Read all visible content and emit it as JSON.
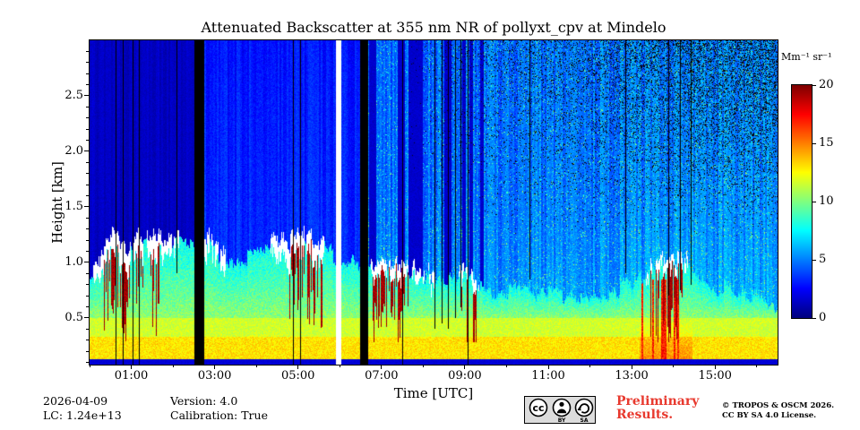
{
  "chart_data": {
    "type": "heatmap",
    "title": "Attenuated Backscatter at 355 nm NR of pollyxt_cpv at Mindelo",
    "xlabel": "Time [UTC]",
    "ylabel": "Height [km]",
    "colorbar_label": "Mm⁻¹ sr⁻¹",
    "colormap": "jet",
    "value_range": [
      0,
      20
    ],
    "time_range_hours": [
      0,
      16.5
    ],
    "height_range_km": [
      0.08,
      3.0
    ],
    "x_major_ticks": [
      {
        "hour": 1,
        "label": "01:00"
      },
      {
        "hour": 3,
        "label": "03:00"
      },
      {
        "hour": 5,
        "label": "05:00"
      },
      {
        "hour": 7,
        "label": "07:00"
      },
      {
        "hour": 9,
        "label": "09:00"
      },
      {
        "hour": 11,
        "label": "11:00"
      },
      {
        "hour": 13,
        "label": "13:00"
      },
      {
        "hour": 15,
        "label": "15:00"
      }
    ],
    "x_minor_tick_hours": [
      0,
      2,
      4,
      6,
      8,
      10,
      12,
      14,
      16
    ],
    "y_major_ticks": [
      {
        "km": 0.5,
        "label": "0.5"
      },
      {
        "km": 1.0,
        "label": "1.0"
      },
      {
        "km": 1.5,
        "label": "1.5"
      },
      {
        "km": 2.0,
        "label": "2.0"
      },
      {
        "km": 2.5,
        "label": "2.5"
      }
    ],
    "y_minor_step_km": 0.1,
    "colorbar_ticks": [
      {
        "value": 0,
        "label": "0"
      },
      {
        "value": 5,
        "label": "5"
      },
      {
        "value": 10,
        "label": "10"
      },
      {
        "value": 15,
        "label": "15"
      },
      {
        "value": 20,
        "label": "20"
      }
    ],
    "aerosol_layer_top_km": [
      [
        0.0,
        0.8
      ],
      [
        0.3,
        1.0
      ],
      [
        0.6,
        1.2
      ],
      [
        0.9,
        1.05
      ],
      [
        1.2,
        1.25
      ],
      [
        1.5,
        1.1
      ],
      [
        1.8,
        1.15
      ],
      [
        2.1,
        1.2
      ],
      [
        2.5,
        1.15
      ],
      [
        3.0,
        1.12
      ],
      [
        3.5,
        1.02
      ],
      [
        4.0,
        1.06
      ],
      [
        4.5,
        1.12
      ],
      [
        5.0,
        1.18
      ],
      [
        5.5,
        1.14
      ],
      [
        6.0,
        1.02
      ],
      [
        6.6,
        0.95
      ],
      [
        7.0,
        0.95
      ],
      [
        7.5,
        0.92
      ],
      [
        8.0,
        0.85
      ],
      [
        8.5,
        0.8
      ],
      [
        9.0,
        0.9
      ],
      [
        9.5,
        0.74
      ],
      [
        10.0,
        0.7
      ],
      [
        10.5,
        0.73
      ],
      [
        11.0,
        0.7
      ],
      [
        11.5,
        0.69
      ],
      [
        12.0,
        0.71
      ],
      [
        12.5,
        0.74
      ],
      [
        13.0,
        0.78
      ],
      [
        13.5,
        0.92
      ],
      [
        14.0,
        1.0
      ],
      [
        14.5,
        0.86
      ],
      [
        15.0,
        0.77
      ],
      [
        15.5,
        0.72
      ],
      [
        16.0,
        0.69
      ],
      [
        16.5,
        0.66
      ]
    ],
    "upper_background": {
      "pre_gap_value": 1.3,
      "pre_noise": 0.7,
      "mid_value": 3.3,
      "mid_noise": 1.2,
      "post_value": 4.3,
      "post_slope_per_hour": 0.09,
      "post_noise": 1.7
    },
    "blue_column_interval_hours": [
      6.7,
      9.6
    ],
    "cloud_intervals_hours": [
      [
        0.05,
        2.2
      ],
      [
        2.75,
        3.3
      ],
      [
        4.35,
        5.75
      ],
      [
        6.7,
        8.3
      ],
      [
        8.85,
        9.35
      ],
      [
        13.35,
        14.35
      ]
    ],
    "virga_intervals_hours": [
      [
        0.3,
        1.7
      ],
      [
        4.8,
        5.6
      ],
      [
        6.7,
        7.7
      ],
      [
        8.9,
        9.3
      ],
      [
        13.45,
        14.25
      ]
    ],
    "hot_surface_interval_hours": [
      13.2,
      14.45
    ],
    "black_gap_intervals_hours": [
      [
        2.52,
        2.72
      ],
      [
        6.48,
        6.66
      ]
    ],
    "white_gap_intervals_hours": [
      [
        5.9,
        6.02
      ]
    ],
    "thin_black_line_hours": [
      0.62,
      0.8,
      1.03,
      1.18,
      4.87,
      5.05,
      7.5,
      9.07
    ],
    "partial_black_lines": [
      [
        2.08,
        0.9
      ],
      [
        8.28,
        0.4
      ],
      [
        8.44,
        0.45
      ],
      [
        8.6,
        0.4
      ],
      [
        8.76,
        0.5
      ],
      [
        8.9,
        0.6
      ],
      [
        10.55,
        0.85
      ],
      [
        12.85,
        0.9
      ],
      [
        13.88,
        0.7
      ],
      [
        14.15,
        0.75
      ],
      [
        14.42,
        0.8
      ]
    ],
    "surface_layers": {
      "overlap_top_km": 0.13,
      "overlap_value": 1.5,
      "bright_top_km": 0.33,
      "bright_value": 12.5,
      "mid_top_km": 0.5,
      "mid_value": 11
    },
    "virga_value": 18.5,
    "seed": 42
  },
  "footer": {
    "date": "2026-04-09",
    "lc": "LC: 1.24e+13",
    "version": "Version: 4.0",
    "calibration": "Calibration: True",
    "preliminary_line1": "Preliminary",
    "preliminary_line2": "Results.",
    "copyright_line1": "© TROPOS & OSCM 2026.",
    "copyright_line2": "CC BY SA 4.0 License."
  },
  "badge": {
    "cc": "cc",
    "by": "BY",
    "sa": "SA"
  },
  "colors": {
    "preliminary_red": "#e8392e",
    "background": "#ffffff",
    "axis": "#000000"
  }
}
